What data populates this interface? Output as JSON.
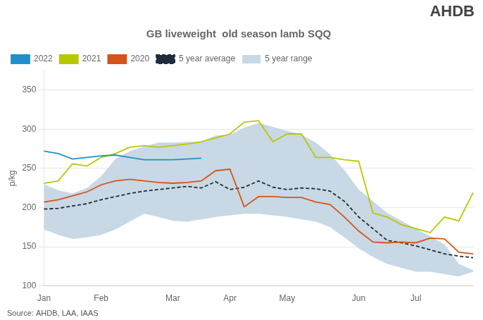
{
  "chart_data": {
    "type": "line",
    "title": "GB liveweight  old season lamb SQQ",
    "y_label": "p/kg",
    "annotations": [
      "Source: AHDB, LAA, IAAS",
      "AHDB"
    ],
    "categories": [
      "Jan",
      null,
      null,
      null,
      "Feb",
      null,
      null,
      null,
      null,
      "Mar",
      null,
      null,
      null,
      "Apr",
      null,
      null,
      null,
      "May",
      null,
      null,
      null,
      null,
      "Jun",
      null,
      null,
      null,
      "Jul",
      null,
      null,
      null,
      null
    ],
    "series": [
      {
        "name": "5 year range",
        "type": "range",
        "color": "#c8d8e4",
        "lower": [
          172,
          165,
          160,
          162,
          165,
          172,
          182,
          192,
          188,
          183,
          182,
          185,
          188,
          190,
          192,
          192,
          190,
          188,
          185,
          182,
          175,
          162,
          148,
          137,
          128,
          123,
          118,
          118,
          115,
          112,
          118
        ],
        "upper": [
          230,
          222,
          218,
          225,
          240,
          262,
          272,
          278,
          283,
          283,
          284,
          284,
          292,
          293,
          302,
          308,
          303,
          298,
          293,
          283,
          268,
          248,
          223,
          208,
          193,
          183,
          173,
          163,
          153,
          128,
          120
        ]
      },
      {
        "name": "2020",
        "color": "#d4541a",
        "values": [
          207,
          210,
          215,
          220,
          229,
          234,
          236,
          234,
          232,
          231,
          232,
          234,
          247,
          249,
          201,
          214,
          214,
          213,
          213,
          207,
          204,
          188,
          170,
          156,
          155,
          156,
          155,
          161,
          160,
          143,
          141
        ]
      },
      {
        "name": "2021",
        "color": "#b8c800",
        "values": [
          231,
          234,
          256,
          253,
          264,
          269,
          277,
          279,
          277,
          279,
          281,
          284,
          289,
          294,
          309,
          311,
          284,
          294,
          294,
          264,
          264,
          261,
          259,
          193,
          188,
          178,
          173,
          168,
          188,
          183,
          219
        ]
      },
      {
        "name": "2022",
        "color": "#2090cc",
        "values": [
          272,
          269,
          262,
          264,
          266,
          267,
          264,
          261,
          261,
          261,
          262,
          263,
          null,
          null,
          null,
          null,
          null,
          null,
          null,
          null,
          null,
          null,
          null,
          null,
          null,
          null,
          null,
          null,
          null,
          null,
          null
        ]
      },
      {
        "name": "5 year average",
        "color": "#1e2d3c",
        "line_style": "dashed",
        "values": [
          198,
          199,
          202,
          205,
          210,
          214,
          218,
          221,
          223,
          225,
          227,
          225,
          233,
          223,
          226,
          234,
          226,
          223,
          225,
          224,
          221,
          208,
          188,
          173,
          158,
          155,
          151,
          146,
          141,
          138,
          136
        ]
      }
    ],
    "ylim": [
      100,
      375
    ],
    "yticks": [
      100,
      150,
      200,
      250,
      300,
      350
    ],
    "grid": true,
    "legend": "top"
  }
}
